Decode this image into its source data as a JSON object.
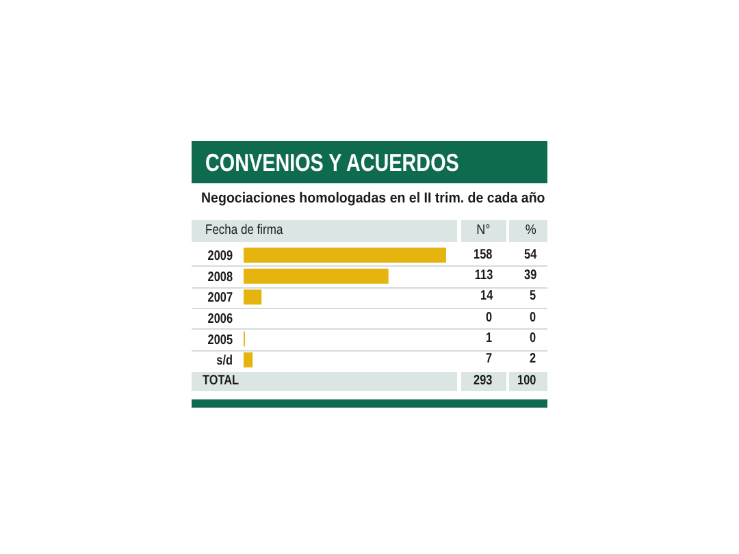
{
  "chart_data": {
    "type": "bar",
    "orientation": "horizontal",
    "title": "CONVENIOS Y ACUERDOS",
    "subtitle": "Negociaciones homologadas en el II trim. de cada año",
    "ylabel": "Fecha de firma",
    "categories": [
      "2009",
      "2008",
      "2007",
      "2006",
      "2005",
      "s/d"
    ],
    "values": [
      158,
      113,
      14,
      0,
      1,
      7
    ],
    "color": "#e6b40f",
    "data_labels": true,
    "tick_labels": "y",
    "annotations": [
      "N°",
      "%",
      "54",
      "39",
      "5",
      "0",
      "0",
      "2",
      "TOTAL",
      "293",
      "100"
    ]
  }
}
